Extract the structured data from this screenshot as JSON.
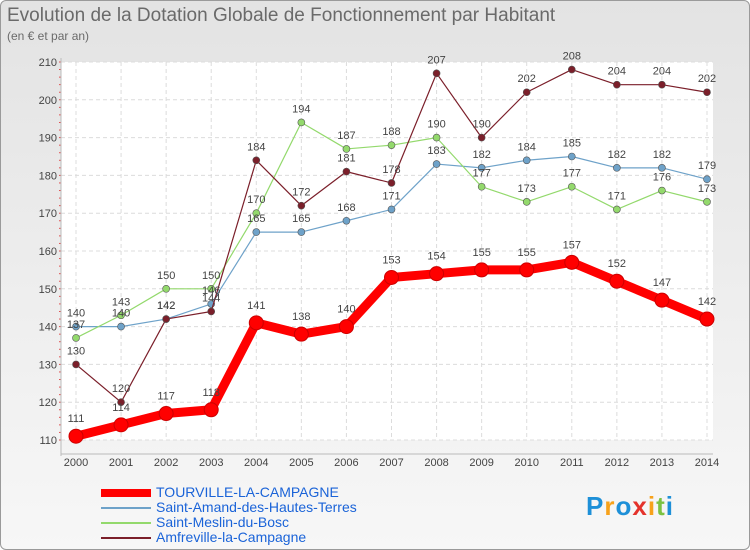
{
  "header": {
    "title": "Evolution de la Dotation Globale de Fonctionnement par Habitant",
    "subtitle": "(en € et par an)"
  },
  "logo": {
    "text": "Proxiti",
    "colors": [
      "#1e90d8",
      "#f7a21b",
      "#1e90d8",
      "#e4322b",
      "#f7a21b",
      "#7cc242",
      "#1e90d8"
    ]
  },
  "chart_data": {
    "type": "line",
    "title": "Evolution de la Dotation Globale de Fonctionnement par Habitant",
    "subtitle": "(en € et par an)",
    "xlabel": "",
    "ylabel": "",
    "ylim": [
      110,
      210
    ],
    "yticks": [
      110,
      120,
      130,
      140,
      150,
      160,
      170,
      180,
      190,
      200,
      210
    ],
    "grid": true,
    "legend_position": "bottom-left",
    "categories": [
      "2000",
      "2001",
      "2002",
      "2003",
      "2004",
      "2005",
      "2006",
      "2007",
      "2008",
      "2009",
      "2010",
      "2011",
      "2012",
      "2013",
      "2014"
    ],
    "series": [
      {
        "name": "TOURVILLE-LA-CAMPAGNE",
        "color": "#ff0000",
        "labelColor": "#444444",
        "values": [
          111,
          114,
          117,
          118,
          141,
          138,
          140,
          153,
          154,
          155,
          155,
          157,
          152,
          147,
          142
        ]
      },
      {
        "name": "Saint-Amand-des-Hautes-Terres",
        "color": "#6ea2c9",
        "labelColor": "#444444",
        "values": [
          140,
          140,
          142,
          146,
          165,
          165,
          168,
          171,
          183,
          182,
          184,
          185,
          182,
          182,
          179
        ]
      },
      {
        "name": "Saint-Meslin-du-Bosc",
        "color": "#93d96c",
        "labelColor": "#444444",
        "values": [
          137,
          143,
          150,
          150,
          170,
          194,
          187,
          188,
          190,
          177,
          173,
          177,
          171,
          176,
          173
        ]
      },
      {
        "name": "Amfreville-la-Campagne",
        "color": "#7b1f2a",
        "labelColor": "#444444",
        "values": [
          130,
          120,
          142,
          144,
          184,
          172,
          181,
          178,
          207,
          190,
          202,
          208,
          204,
          204,
          202
        ]
      }
    ]
  }
}
